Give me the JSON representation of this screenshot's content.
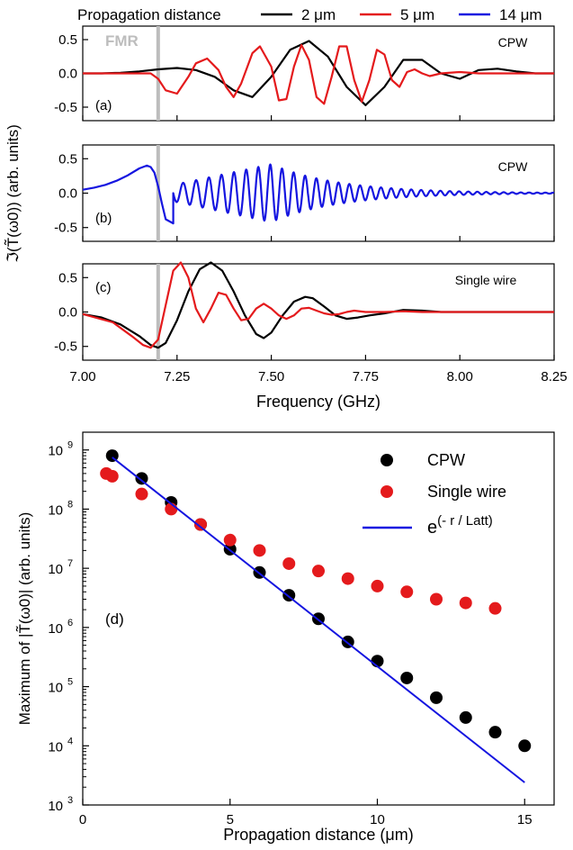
{
  "legend_top": {
    "title": "Propagation distance",
    "entries": [
      {
        "label": "2 μm",
        "color": "#000000"
      },
      {
        "label": "5 μm",
        "color": "#e41a1c"
      },
      {
        "label": "14 μm",
        "color": "#1515e0"
      }
    ]
  },
  "fmr_label": "FMR",
  "colors": {
    "black": "#000000",
    "red": "#e41a1c",
    "blue": "#1515e0",
    "fmr": "#bdbdbd"
  },
  "chart_data": [
    {
      "type": "line",
      "panel": "(a)",
      "annotation": "CPW",
      "fmr_frequency": 7.2,
      "xlim": [
        7.0,
        8.25
      ],
      "ylim": [
        -0.7,
        0.7
      ],
      "yticks": [
        "0.5",
        "0.0",
        "-0.5"
      ],
      "series": [
        {
          "name": "2 μm",
          "color": "#000000",
          "x": [
            7.0,
            7.05,
            7.1,
            7.15,
            7.2,
            7.25,
            7.3,
            7.35,
            7.4,
            7.45,
            7.5,
            7.55,
            7.6,
            7.65,
            7.7,
            7.75,
            7.8,
            7.85,
            7.9,
            7.95,
            8.0,
            8.05,
            8.1,
            8.15,
            8.2,
            8.25
          ],
          "y": [
            0,
            0,
            0.01,
            0.03,
            0.06,
            0.08,
            0.05,
            -0.05,
            -0.25,
            -0.35,
            -0.05,
            0.35,
            0.48,
            0.25,
            -0.2,
            -0.47,
            -0.2,
            0.2,
            0.2,
            0,
            -0.08,
            0.05,
            0.07,
            0.03,
            0,
            0
          ]
        },
        {
          "name": "5 μm",
          "color": "#e41a1c",
          "x": [
            7.0,
            7.1,
            7.18,
            7.2,
            7.22,
            7.25,
            7.28,
            7.3,
            7.33,
            7.36,
            7.38,
            7.4,
            7.42,
            7.45,
            7.47,
            7.5,
            7.52,
            7.54,
            7.56,
            7.58,
            7.6,
            7.62,
            7.64,
            7.66,
            7.68,
            7.7,
            7.72,
            7.74,
            7.76,
            7.78,
            7.8,
            7.82,
            7.84,
            7.86,
            7.88,
            7.9,
            7.92,
            7.95,
            8.0,
            8.05,
            8.1,
            8.25
          ],
          "y": [
            0,
            0,
            0,
            -0.08,
            -0.25,
            -0.3,
            -0.05,
            0.15,
            0.22,
            0.05,
            -0.2,
            -0.35,
            -0.15,
            0.3,
            0.4,
            0.1,
            -0.4,
            -0.38,
            0.1,
            0.42,
            0.2,
            -0.35,
            -0.45,
            -0.05,
            0.4,
            0.4,
            -0.1,
            -0.42,
            -0.1,
            0.35,
            0.28,
            -0.1,
            -0.2,
            0.02,
            0.06,
            0,
            -0.04,
            0,
            0.02,
            0,
            0,
            0
          ]
        }
      ]
    },
    {
      "type": "line",
      "panel": "(b)",
      "annotation": "CPW",
      "fmr_frequency": 7.2,
      "xlim": [
        7.0,
        8.25
      ],
      "ylim": [
        -0.7,
        0.7
      ],
      "yticks": [
        "0.5",
        "0.0",
        "-0.5"
      ],
      "series": [
        {
          "name": "14 μm",
          "color": "#1515e0",
          "x": [
            7.0,
            7.03,
            7.06,
            7.09,
            7.12,
            7.15,
            7.17,
            7.18,
            7.19,
            7.2,
            7.21,
            7.22,
            7.24
          ],
          "y": [
            0.05,
            0.08,
            0.12,
            0.18,
            0.26,
            0.36,
            0.4,
            0.38,
            0.3,
            0.1,
            -0.15,
            -0.38,
            -0.44
          ],
          "oscillation": {
            "start": 7.24,
            "end": 8.25,
            "period_start": 0.035,
            "period_end": 0.021,
            "amplitude_peak": 0.42,
            "peak_frequency": 7.5
          }
        }
      ]
    },
    {
      "type": "line",
      "panel": "(c)",
      "annotation": "Single wire",
      "fmr_frequency": 7.2,
      "xlim": [
        7.0,
        8.25
      ],
      "ylim": [
        -0.7,
        0.7
      ],
      "yticks": [
        "0.5",
        "0.0",
        "-0.5"
      ],
      "xticks": [
        "7.00",
        "7.25",
        "7.50",
        "7.75",
        "8.00",
        "8.25"
      ],
      "series": [
        {
          "name": "2 μm",
          "color": "#000000",
          "x": [
            7.0,
            7.05,
            7.1,
            7.15,
            7.18,
            7.2,
            7.22,
            7.25,
            7.28,
            7.31,
            7.34,
            7.37,
            7.4,
            7.43,
            7.46,
            7.48,
            7.5,
            7.53,
            7.56,
            7.59,
            7.61,
            7.64,
            7.67,
            7.7,
            7.73,
            7.76,
            7.8,
            7.85,
            7.9,
            7.95,
            8.0,
            8.25
          ],
          "y": [
            -0.03,
            -0.08,
            -0.18,
            -0.35,
            -0.48,
            -0.52,
            -0.45,
            -0.12,
            0.3,
            0.62,
            0.72,
            0.6,
            0.3,
            -0.05,
            -0.32,
            -0.38,
            -0.3,
            -0.05,
            0.15,
            0.22,
            0.2,
            0.08,
            -0.05,
            -0.1,
            -0.08,
            -0.05,
            -0.02,
            0.03,
            0.02,
            0,
            0,
            0
          ]
        },
        {
          "name": "5 μm",
          "color": "#e41a1c",
          "x": [
            7.0,
            7.08,
            7.13,
            7.16,
            7.18,
            7.2,
            7.22,
            7.24,
            7.26,
            7.28,
            7.3,
            7.32,
            7.34,
            7.36,
            7.38,
            7.4,
            7.42,
            7.44,
            7.46,
            7.48,
            7.5,
            7.52,
            7.54,
            7.56,
            7.58,
            7.6,
            7.62,
            7.64,
            7.66,
            7.68,
            7.7,
            7.72,
            7.75,
            7.8,
            7.85,
            7.9,
            8.0,
            8.25
          ],
          "y": [
            -0.03,
            -0.15,
            -0.35,
            -0.48,
            -0.52,
            -0.4,
            0.1,
            0.6,
            0.72,
            0.5,
            0.05,
            -0.15,
            0.05,
            0.28,
            0.25,
            0.05,
            -0.12,
            -0.1,
            0.05,
            0.12,
            0.05,
            -0.05,
            -0.1,
            -0.05,
            0.05,
            0.06,
            0.02,
            -0.02,
            -0.04,
            -0.03,
            0,
            0.02,
            0,
            0,
            0.01,
            0,
            0,
            0
          ]
        }
      ]
    },
    {
      "type": "scatter",
      "panel": "(d)",
      "xlabel": "Propagation distance (μm)",
      "ylabel": "Maximum of |T̃(ω0)| (arb. units)",
      "xlim": [
        0,
        16
      ],
      "ylim_log10": [
        3,
        9.3
      ],
      "yscale": "log",
      "xticks": [
        "0",
        "5",
        "10",
        "15"
      ],
      "yticks_exponents": [
        "3",
        "4",
        "5",
        "6",
        "7",
        "8",
        "9"
      ],
      "yticks_base": "10",
      "legend_position": "top-right",
      "series": [
        {
          "name": "CPW",
          "color": "#000000",
          "x": [
            1,
            2,
            3,
            4,
            5,
            6,
            7,
            8,
            9,
            10,
            11,
            12,
            13,
            14,
            15
          ],
          "y": [
            800000000.0,
            330000000.0,
            130000000.0,
            55000000.0,
            21000000.0,
            8500000.0,
            3500000.0,
            1400000.0,
            570000.0,
            270000.0,
            140000.0,
            65000.0,
            30000.0,
            17000.0,
            10000.0
          ]
        },
        {
          "name": "Single wire",
          "color": "#e41a1c",
          "x": [
            0.8,
            1,
            2,
            3,
            4,
            5,
            6,
            7,
            8,
            9,
            10,
            11,
            12,
            13,
            14
          ],
          "y": [
            400000000.0,
            360000000.0,
            180000000.0,
            100000000.0,
            55000000.0,
            30000000.0,
            20000000.0,
            12000000.0,
            9000000.0,
            6700000.0,
            5000000.0,
            4000000.0,
            3000000.0,
            2600000.0,
            2100000.0
          ]
        },
        {
          "name": "e",
          "superscript": "(- r / Latt)",
          "color": "#1515e0",
          "kind": "fit-line",
          "x": [
            1,
            15
          ],
          "y": [
            750000000.0,
            2400.0
          ]
        }
      ]
    }
  ],
  "shared_axes": {
    "top_xlabel": "Frequency (GHz)",
    "top_ylabel": "ℑ(T̃(ω0)) (arb. units)"
  }
}
